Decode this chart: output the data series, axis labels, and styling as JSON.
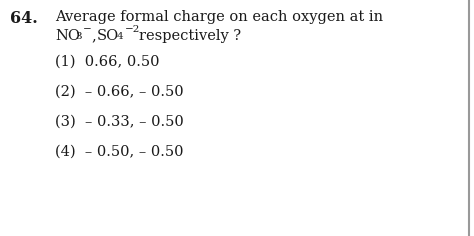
{
  "background_color": "#ffffff",
  "question_number": "64.",
  "question_line1": "Average formal charge on each oxygen at in",
  "options": [
    "(1)  0.66, 0.50",
    "(2)  – 0.66, – 0.50",
    "(3)  – 0.33, – 0.50",
    "(4)  – 0.50, – 0.50"
  ],
  "font_size": 10.5,
  "bold_fontsize": 11.5,
  "text_color": "#1a1a1a",
  "border_color": "#999999"
}
